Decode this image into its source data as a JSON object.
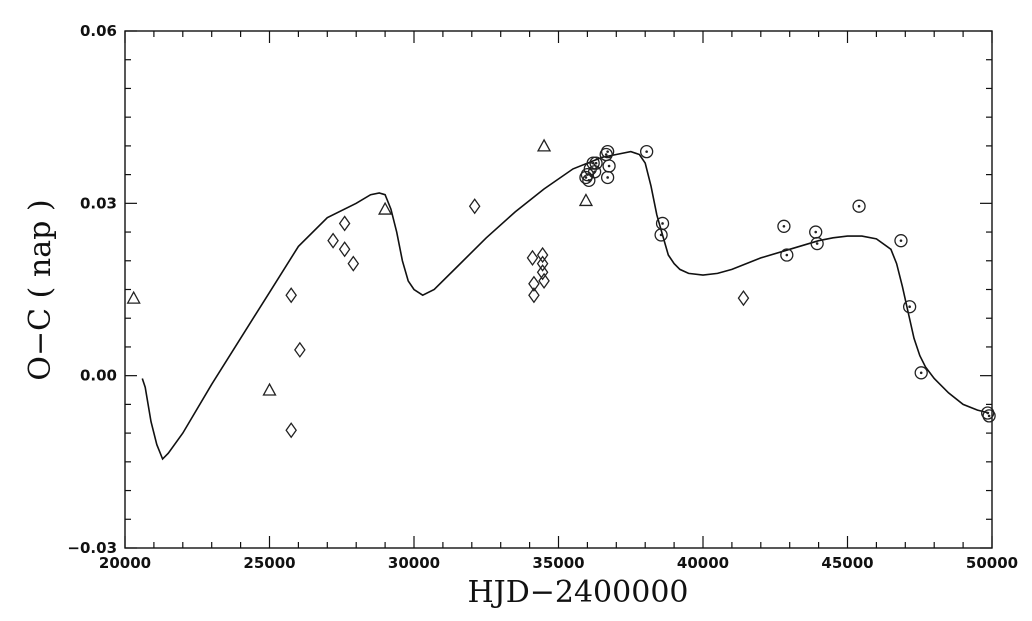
{
  "chart_data": {
    "type": "scatter",
    "xlabel": "HJD−2400000",
    "ylabel": "O−C ( nap )",
    "xlim": [
      20000,
      50000
    ],
    "ylim": [
      -0.03,
      0.06
    ],
    "xticks": [
      20000,
      25000,
      30000,
      35000,
      40000,
      45000,
      50000
    ],
    "xtick_labels": [
      "20000",
      "25000",
      "30000",
      "35000",
      "40000",
      "45000",
      "50000"
    ],
    "yticks": [
      -0.03,
      0.0,
      0.03,
      0.06
    ],
    "ytick_labels": [
      "−0.03",
      "0.00",
      "0.03",
      "0.06"
    ],
    "grid": false,
    "series": [
      {
        "marker": "triangle",
        "x": [
          20300,
          25000,
          29000,
          34500,
          35950
        ],
        "y": [
          0.0135,
          -0.0025,
          0.029,
          0.04,
          0.0305
        ]
      },
      {
        "marker": "diamond",
        "x": [
          25750,
          25750,
          26050,
          27200,
          27600,
          27600,
          27900,
          32100,
          34100,
          34150,
          34150,
          34450,
          34450,
          34450,
          34500,
          41400
        ],
        "y": [
          0.014,
          -0.0095,
          0.0045,
          0.0235,
          0.0265,
          0.022,
          0.0195,
          0.0295,
          0.0205,
          0.014,
          0.016,
          0.018,
          0.0195,
          0.021,
          0.0165,
          0.0135
        ]
      },
      {
        "marker": "circled-dot",
        "x": [
          35950,
          36000,
          36050,
          36100,
          36200,
          36250,
          36300,
          36650,
          36700,
          36700,
          36750,
          38050,
          38550,
          38600,
          42800,
          42900,
          43900,
          43950,
          45400,
          46850,
          47150,
          47550,
          49850,
          49900
        ],
        "y": [
          0.0345,
          0.035,
          0.034,
          0.036,
          0.037,
          0.0355,
          0.037,
          0.0385,
          0.039,
          0.0345,
          0.0365,
          0.039,
          0.0245,
          0.0265,
          0.026,
          0.021,
          0.025,
          0.023,
          0.0295,
          0.0235,
          0.012,
          0.0005,
          -0.0065,
          -0.007
        ]
      },
      {
        "marker": "line",
        "x": [
          20600,
          20700,
          20900,
          21100,
          21300,
          21500,
          22000,
          23000,
          24000,
          25000,
          26000,
          27000,
          28000,
          28500,
          28800,
          29000,
          29200,
          29400,
          29600,
          29800,
          30000,
          30300,
          30700,
          31500,
          32500,
          33500,
          34500,
          35500,
          36500,
          37000,
          37500,
          37800,
          38000,
          38200,
          38400,
          38600,
          38800,
          39000,
          39200,
          39500,
          40000,
          40500,
          41000,
          42000,
          43000,
          44000,
          44500,
          45000,
          45500,
          46000,
          46500,
          46700,
          46900,
          47100,
          47300,
          47500,
          47700,
          48000,
          48500,
          49000,
          49500,
          49900
        ],
        "y": [
          -0.0005,
          -0.002,
          -0.008,
          -0.012,
          -0.0145,
          -0.0135,
          -0.01,
          -0.0015,
          0.0065,
          0.0145,
          0.0225,
          0.0275,
          0.03,
          0.0315,
          0.0318,
          0.0315,
          0.029,
          0.025,
          0.02,
          0.0165,
          0.015,
          0.014,
          0.015,
          0.019,
          0.024,
          0.0285,
          0.0325,
          0.036,
          0.038,
          0.0385,
          0.039,
          0.0385,
          0.037,
          0.033,
          0.028,
          0.0245,
          0.021,
          0.0195,
          0.0185,
          0.0178,
          0.0175,
          0.0178,
          0.0185,
          0.0205,
          0.022,
          0.0235,
          0.024,
          0.0243,
          0.0243,
          0.0238,
          0.022,
          0.0195,
          0.0155,
          0.011,
          0.0065,
          0.0035,
          0.0015,
          -0.0005,
          -0.003,
          -0.005,
          -0.006,
          -0.0065
        ]
      }
    ]
  }
}
